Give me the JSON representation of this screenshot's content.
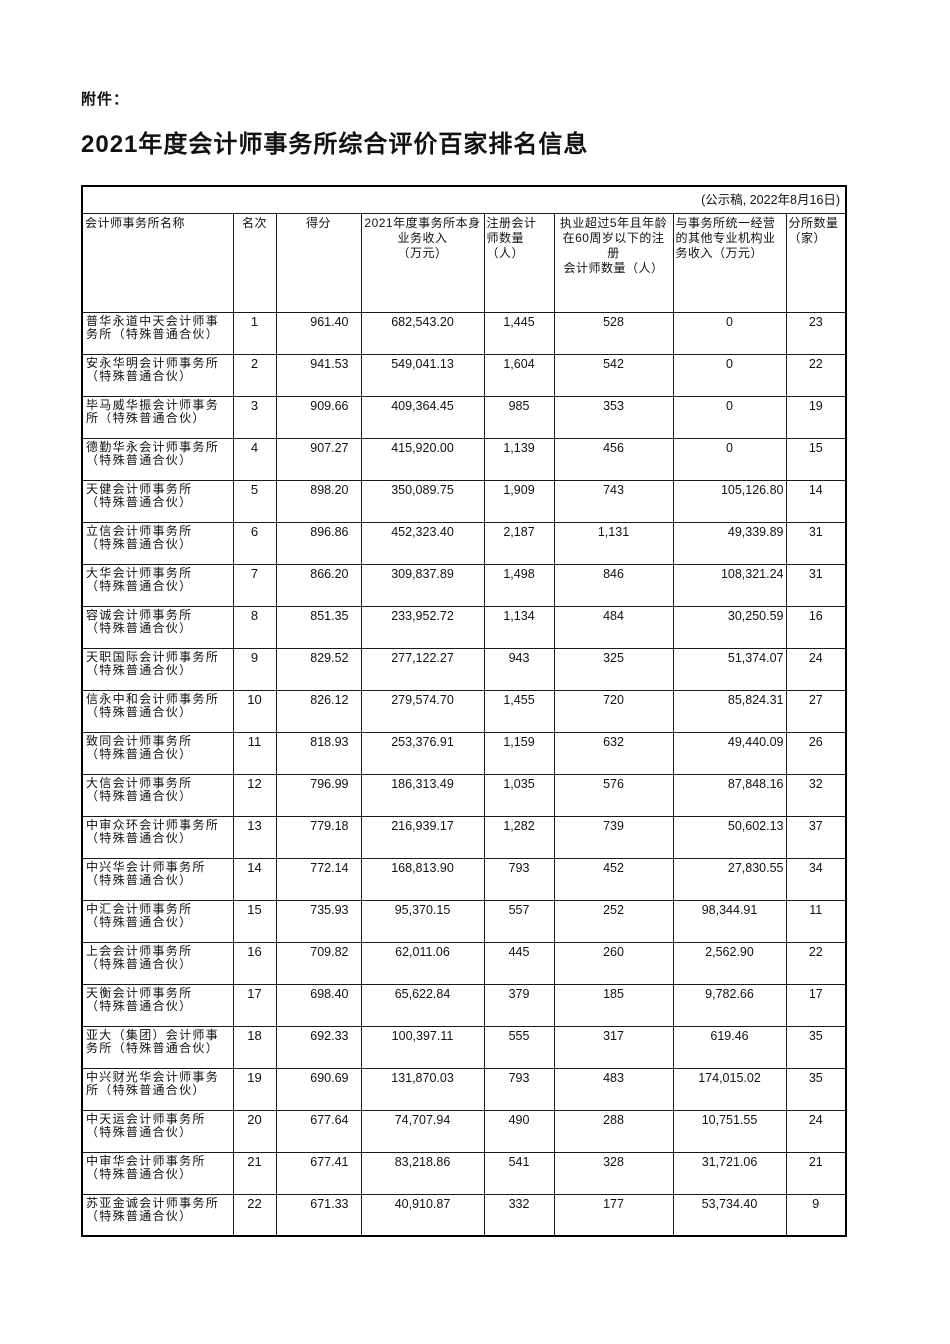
{
  "page": {
    "attachment_label": "附件：",
    "title": "2021年度会计师事务所综合评价百家排名信息",
    "notice": "(公示稿, 2022年8月16日)"
  },
  "table": {
    "columns": [
      {
        "label": "会计师事务所名称"
      },
      {
        "label": "名次"
      },
      {
        "label": "得分"
      },
      {
        "label": "2021年度事务所本身\n业务收入\n（万元）"
      },
      {
        "label": "注册会计\n师数量\n（人）"
      },
      {
        "label": "执业超过5年且年龄\n在60周岁以下的注册\n会计师数量（人）"
      },
      {
        "label": "与事务所统一经营\n的其他专业机构业\n务收入（万元）"
      },
      {
        "label": "分所数量\n（家）"
      }
    ],
    "rows": [
      {
        "name": "普华永道中天会计师事务所（特殊普通合伙）",
        "rank": "1",
        "score": "961.40",
        "revenue": "682,543.20",
        "cpa_count": "1,445",
        "cpa_experienced": "528",
        "other_income": "0",
        "branches": "23"
      },
      {
        "name": "安永华明会计师事务所（特殊普通合伙）",
        "rank": "2",
        "score": "941.53",
        "revenue": "549,041.13",
        "cpa_count": "1,604",
        "cpa_experienced": "542",
        "other_income": "0",
        "branches": "22"
      },
      {
        "name": "毕马威华振会计师事务所（特殊普通合伙）",
        "rank": "3",
        "score": "909.66",
        "revenue": "409,364.45",
        "cpa_count": "985",
        "cpa_experienced": "353",
        "other_income": "0",
        "branches": "19"
      },
      {
        "name": "德勤华永会计师事务所（特殊普通合伙）",
        "rank": "4",
        "score": "907.27",
        "revenue": "415,920.00",
        "cpa_count": "1,139",
        "cpa_experienced": "456",
        "other_income": "0",
        "branches": "15"
      },
      {
        "name": "天健会计师事务所\n（特殊普通合伙）",
        "rank": "5",
        "score": "898.20",
        "revenue": "350,089.75",
        "cpa_count": "1,909",
        "cpa_experienced": "743",
        "other_income": "105,126.80",
        "branches": "14"
      },
      {
        "name": "立信会计师事务所\n（特殊普通合伙）",
        "rank": "6",
        "score": "896.86",
        "revenue": "452,323.40",
        "cpa_count": "2,187",
        "cpa_experienced": "1,131",
        "other_income": "49,339.89",
        "branches": "31"
      },
      {
        "name": "大华会计师事务所\n（特殊普通合伙）",
        "rank": "7",
        "score": "866.20",
        "revenue": "309,837.89",
        "cpa_count": "1,498",
        "cpa_experienced": "846",
        "other_income": "108,321.24",
        "branches": "31"
      },
      {
        "name": "容诚会计师事务所\n（特殊普通合伙）",
        "rank": "8",
        "score": "851.35",
        "revenue": "233,952.72",
        "cpa_count": "1,134",
        "cpa_experienced": "484",
        "other_income": "30,250.59",
        "branches": "16"
      },
      {
        "name": "天职国际会计师事务所（特殊普通合伙）",
        "rank": "9",
        "score": "829.52",
        "revenue": "277,122.27",
        "cpa_count": "943",
        "cpa_experienced": "325",
        "other_income": "51,374.07",
        "branches": "24"
      },
      {
        "name": "信永中和会计师事务所（特殊普通合伙）",
        "rank": "10",
        "score": "826.12",
        "revenue": "279,574.70",
        "cpa_count": "1,455",
        "cpa_experienced": "720",
        "other_income": "85,824.31",
        "branches": "27"
      },
      {
        "name": "致同会计师事务所\n（特殊普通合伙）",
        "rank": "11",
        "score": "818.93",
        "revenue": "253,376.91",
        "cpa_count": "1,159",
        "cpa_experienced": "632",
        "other_income": "49,440.09",
        "branches": "26"
      },
      {
        "name": "大信会计师事务所\n（特殊普通合伙）",
        "rank": "12",
        "score": "796.99",
        "revenue": "186,313.49",
        "cpa_count": "1,035",
        "cpa_experienced": "576",
        "other_income": "87,848.16",
        "branches": "32"
      },
      {
        "name": "中审众环会计师事务所（特殊普通合伙）",
        "rank": "13",
        "score": "779.18",
        "revenue": "216,939.17",
        "cpa_count": "1,282",
        "cpa_experienced": "739",
        "other_income": "50,602.13",
        "branches": "37"
      },
      {
        "name": "中兴华会计师事务所\n（特殊普通合伙）",
        "rank": "14",
        "score": "772.14",
        "revenue": "168,813.90",
        "cpa_count": "793",
        "cpa_experienced": "452",
        "other_income": "27,830.55",
        "branches": "34"
      },
      {
        "name": "中汇会计师事务所\n（特殊普通合伙）",
        "rank": "15",
        "score": "735.93",
        "revenue": "95,370.15",
        "cpa_count": "557",
        "cpa_experienced": "252",
        "other_income": "98,344.91",
        "branches": "11"
      },
      {
        "name": "上会会计师事务所\n（特殊普通合伙）",
        "rank": "16",
        "score": "709.82",
        "revenue": "62,011.06",
        "cpa_count": "445",
        "cpa_experienced": "260",
        "other_income": "2,562.90",
        "branches": "22"
      },
      {
        "name": "天衡会计师事务所\n（特殊普通合伙）",
        "rank": "17",
        "score": "698.40",
        "revenue": "65,622.84",
        "cpa_count": "379",
        "cpa_experienced": "185",
        "other_income": "9,782.66",
        "branches": "17"
      },
      {
        "name": "亚大（集团）会计师事务所（特殊普通合伙）",
        "rank": "18",
        "score": "692.33",
        "revenue": "100,397.11",
        "cpa_count": "555",
        "cpa_experienced": "317",
        "other_income": "619.46",
        "branches": "35"
      },
      {
        "name": "中兴财光华会计师事务所（特殊普通合伙）",
        "rank": "19",
        "score": "690.69",
        "revenue": "131,870.03",
        "cpa_count": "793",
        "cpa_experienced": "483",
        "other_income": "174,015.02",
        "branches": "35"
      },
      {
        "name": "中天运会计师事务所\n（特殊普通合伙）",
        "rank": "20",
        "score": "677.64",
        "revenue": "74,707.94",
        "cpa_count": "490",
        "cpa_experienced": "288",
        "other_income": "10,751.55",
        "branches": "24"
      },
      {
        "name": "中审华会计师事务所\n（特殊普通合伙）",
        "rank": "21",
        "score": "677.41",
        "revenue": "83,218.86",
        "cpa_count": "541",
        "cpa_experienced": "328",
        "other_income": "31,721.06",
        "branches": "21"
      },
      {
        "name": "苏亚金诚会计师事务所（特殊普通合伙）",
        "rank": "22",
        "score": "671.33",
        "revenue": "40,910.87",
        "cpa_count": "332",
        "cpa_experienced": "177",
        "other_income": "53,734.40",
        "branches": "9"
      }
    ]
  }
}
